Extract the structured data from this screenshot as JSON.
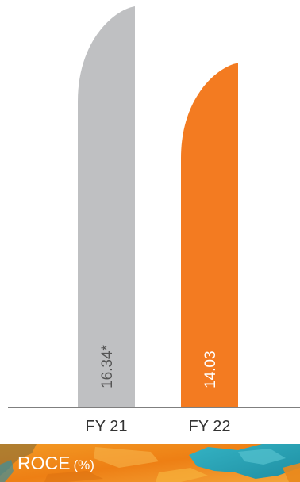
{
  "chart_data": {
    "type": "bar",
    "title": "ROCE",
    "unit": "(%)",
    "categories": [
      "FY 21",
      "FY 22"
    ],
    "values": [
      16.34,
      14.03
    ],
    "value_labels": [
      "16.34*",
      "14.03"
    ],
    "bar_colors": [
      "#bfc0c2",
      "#f37b21"
    ],
    "value_label_colors": [
      "#555555",
      "#ffffff"
    ],
    "ylim": [
      0,
      16.34
    ],
    "grid": false,
    "legend": "none"
  },
  "colors": {
    "axis": "#333333",
    "footer_orange": "#f08a1c",
    "footer_teal": "#2aa6b8"
  }
}
